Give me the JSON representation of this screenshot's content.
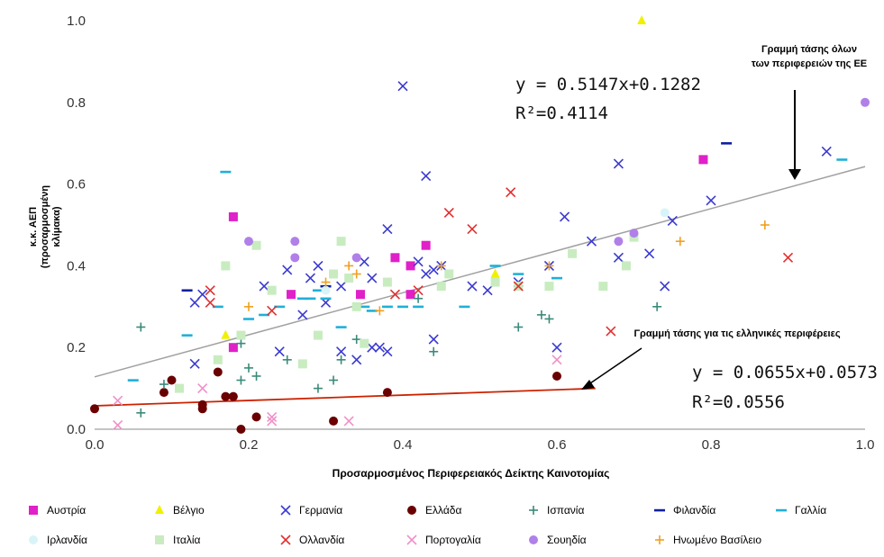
{
  "chart_data": {
    "type": "scatter",
    "title": "",
    "xlabel": "Προσαρμοσμένος Περιφερειακός Δείκτης Καινοτομίας",
    "ylabel_lines": [
      "κ.κ. ΑΕΠ",
      "(προσαρμοσμένη",
      "κλίμακα)"
    ],
    "xlim": [
      0.0,
      1.0
    ],
    "ylim": [
      0.0,
      1.0
    ],
    "x_ticks": [
      "0.0",
      "0.2",
      "0.4",
      "0.6",
      "0.8",
      "1.0"
    ],
    "y_ticks": [
      "0.0",
      "0.2",
      "0.4",
      "0.6",
      "0.8",
      "1.0"
    ],
    "grid": false,
    "legend_position": "bottom",
    "trendlines": [
      {
        "id": "eu",
        "color": "#a0a0a0",
        "slope": 0.5147,
        "intercept": 0.1282,
        "x_range": [
          0.0,
          1.0
        ],
        "equation": "y = 0.5147x+0.1282",
        "r2": "R²=0.4114",
        "label_lines": [
          "Γραμμή τάσης όλων",
          "των περιφερειών της ΕΕ"
        ]
      },
      {
        "id": "greece",
        "color": "#cc2200",
        "slope": 0.0655,
        "intercept": 0.0573,
        "x_range": [
          0.0,
          0.65
        ],
        "equation": "y = 0.0655x+0.0573",
        "r2": "R²=0.0556",
        "label_lines": [
          "Γραμμή τάσης για τις ελληνικές περιφέρειες"
        ]
      }
    ],
    "series": [
      {
        "name": "Αυστρία",
        "marker": "square",
        "color": "#e020c8",
        "points": [
          [
            0.18,
            0.52
          ],
          [
            0.18,
            0.2
          ],
          [
            0.255,
            0.33
          ],
          [
            0.345,
            0.33
          ],
          [
            0.39,
            0.42
          ],
          [
            0.41,
            0.4
          ],
          [
            0.43,
            0.45
          ],
          [
            0.41,
            0.33
          ],
          [
            0.79,
            0.66
          ]
        ]
      },
      {
        "name": "Βέλγιο",
        "marker": "triangle",
        "color": "#f0f000",
        "points": [
          [
            0.17,
            0.23
          ],
          [
            0.52,
            0.38
          ],
          [
            0.71,
            1.0
          ]
        ]
      },
      {
        "name": "Γερμανία",
        "marker": "x",
        "color": "#3a3ad0",
        "points": [
          [
            0.13,
            0.31
          ],
          [
            0.14,
            0.33
          ],
          [
            0.13,
            0.16
          ],
          [
            0.22,
            0.35
          ],
          [
            0.25,
            0.39
          ],
          [
            0.24,
            0.19
          ],
          [
            0.28,
            0.37
          ],
          [
            0.29,
            0.4
          ],
          [
            0.3,
            0.31
          ],
          [
            0.32,
            0.35
          ],
          [
            0.32,
            0.19
          ],
          [
            0.34,
            0.17
          ],
          [
            0.35,
            0.41
          ],
          [
            0.36,
            0.2
          ],
          [
            0.38,
            0.49
          ],
          [
            0.38,
            0.19
          ],
          [
            0.4,
            0.84
          ],
          [
            0.42,
            0.41
          ],
          [
            0.44,
            0.39
          ],
          [
            0.43,
            0.62
          ],
          [
            0.44,
            0.22
          ],
          [
            0.45,
            0.4
          ],
          [
            0.49,
            0.35
          ],
          [
            0.51,
            0.34
          ],
          [
            0.55,
            0.36
          ],
          [
            0.59,
            0.4
          ],
          [
            0.6,
            0.2
          ],
          [
            0.61,
            0.52
          ],
          [
            0.645,
            0.46
          ],
          [
            0.68,
            0.42
          ],
          [
            0.68,
            0.65
          ],
          [
            0.72,
            0.43
          ],
          [
            0.74,
            0.35
          ],
          [
            0.75,
            0.51
          ],
          [
            0.8,
            0.56
          ],
          [
            0.95,
            0.68
          ],
          [
            0.43,
            0.38
          ],
          [
            0.36,
            0.37
          ],
          [
            0.27,
            0.28
          ],
          [
            0.37,
            0.2
          ]
        ]
      },
      {
        "name": "Ελλάδα",
        "marker": "circle",
        "color": "#6a0000",
        "points": [
          [
            0.0,
            0.05
          ],
          [
            0.09,
            0.09
          ],
          [
            0.1,
            0.12
          ],
          [
            0.14,
            0.06
          ],
          [
            0.14,
            0.05
          ],
          [
            0.16,
            0.14
          ],
          [
            0.17,
            0.08
          ],
          [
            0.18,
            0.08
          ],
          [
            0.19,
            0.0
          ],
          [
            0.21,
            0.03
          ],
          [
            0.31,
            0.02
          ],
          [
            0.38,
            0.09
          ],
          [
            0.6,
            0.13
          ]
        ]
      },
      {
        "name": "Ισπανία",
        "marker": "plus",
        "color": "#3a8a7a",
        "points": [
          [
            0.06,
            0.25
          ],
          [
            0.06,
            0.04
          ],
          [
            0.09,
            0.11
          ],
          [
            0.19,
            0.12
          ],
          [
            0.2,
            0.15
          ],
          [
            0.21,
            0.13
          ],
          [
            0.25,
            0.17
          ],
          [
            0.29,
            0.1
          ],
          [
            0.31,
            0.12
          ],
          [
            0.32,
            0.17
          ],
          [
            0.34,
            0.22
          ],
          [
            0.44,
            0.19
          ],
          [
            0.55,
            0.25
          ],
          [
            0.58,
            0.28
          ],
          [
            0.59,
            0.27
          ],
          [
            0.73,
            0.3
          ],
          [
            0.42,
            0.32
          ],
          [
            0.19,
            0.21
          ]
        ]
      },
      {
        "name": "Φιλανδία",
        "marker": "dash",
        "color": "#1020a0",
        "points": [
          [
            0.12,
            0.34
          ],
          [
            0.3,
            0.35
          ],
          [
            0.82,
            0.7
          ]
        ]
      },
      {
        "name": "Γαλλία",
        "marker": "dash",
        "color": "#20b0d8",
        "points": [
          [
            0.05,
            0.12
          ],
          [
            0.12,
            0.23
          ],
          [
            0.16,
            0.3
          ],
          [
            0.17,
            0.63
          ],
          [
            0.2,
            0.27
          ],
          [
            0.22,
            0.28
          ],
          [
            0.24,
            0.3
          ],
          [
            0.27,
            0.32
          ],
          [
            0.28,
            0.32
          ],
          [
            0.3,
            0.32
          ],
          [
            0.32,
            0.25
          ],
          [
            0.35,
            0.3
          ],
          [
            0.36,
            0.29
          ],
          [
            0.38,
            0.3
          ],
          [
            0.4,
            0.3
          ],
          [
            0.42,
            0.3
          ],
          [
            0.48,
            0.3
          ],
          [
            0.52,
            0.4
          ],
          [
            0.55,
            0.38
          ],
          [
            0.6,
            0.37
          ],
          [
            0.97,
            0.66
          ],
          [
            0.29,
            0.34
          ]
        ]
      },
      {
        "name": "Ιρλανδία",
        "marker": "circle",
        "color": "#d8f4f8",
        "points": [
          [
            0.3,
            0.34
          ],
          [
            0.74,
            0.53
          ]
        ]
      },
      {
        "name": "Ιταλία",
        "marker": "square",
        "color": "#c8ecc0",
        "points": [
          [
            0.11,
            0.1
          ],
          [
            0.16,
            0.17
          ],
          [
            0.17,
            0.4
          ],
          [
            0.19,
            0.23
          ],
          [
            0.21,
            0.45
          ],
          [
            0.23,
            0.34
          ],
          [
            0.27,
            0.16
          ],
          [
            0.29,
            0.23
          ],
          [
            0.31,
            0.38
          ],
          [
            0.33,
            0.37
          ],
          [
            0.34,
            0.3
          ],
          [
            0.35,
            0.21
          ],
          [
            0.38,
            0.36
          ],
          [
            0.46,
            0.38
          ],
          [
            0.52,
            0.36
          ],
          [
            0.55,
            0.35
          ],
          [
            0.59,
            0.35
          ],
          [
            0.62,
            0.43
          ],
          [
            0.66,
            0.35
          ],
          [
            0.69,
            0.4
          ],
          [
            0.7,
            0.47
          ],
          [
            0.32,
            0.46
          ],
          [
            0.45,
            0.35
          ]
        ]
      },
      {
        "name": "Ολλανδία",
        "marker": "x",
        "color": "#e03030",
        "points": [
          [
            0.15,
            0.34
          ],
          [
            0.15,
            0.31
          ],
          [
            0.23,
            0.29
          ],
          [
            0.39,
            0.33
          ],
          [
            0.42,
            0.34
          ],
          [
            0.46,
            0.53
          ],
          [
            0.49,
            0.49
          ],
          [
            0.54,
            0.58
          ],
          [
            0.55,
            0.35
          ],
          [
            0.67,
            0.24
          ],
          [
            0.9,
            0.42
          ]
        ]
      },
      {
        "name": "Πορτογαλία",
        "marker": "x",
        "color": "#f090c8",
        "points": [
          [
            0.03,
            0.07
          ],
          [
            0.03,
            0.01
          ],
          [
            0.14,
            0.1
          ],
          [
            0.23,
            0.02
          ],
          [
            0.23,
            0.03
          ],
          [
            0.33,
            0.02
          ],
          [
            0.6,
            0.17
          ]
        ]
      },
      {
        "name": "Σουηδία",
        "marker": "circle",
        "color": "#b080e8",
        "points": [
          [
            0.2,
            0.46
          ],
          [
            0.26,
            0.46
          ],
          [
            0.26,
            0.42
          ],
          [
            0.34,
            0.42
          ],
          [
            0.68,
            0.46
          ],
          [
            0.7,
            0.48
          ],
          [
            1.0,
            0.8
          ]
        ]
      },
      {
        "name": "Ηνωμένο Βασίλειο",
        "marker": "plus",
        "color": "#f0a020",
        "points": [
          [
            0.3,
            0.36
          ],
          [
            0.33,
            0.4
          ],
          [
            0.37,
            0.29
          ],
          [
            0.45,
            0.4
          ],
          [
            0.59,
            0.4
          ],
          [
            0.76,
            0.46
          ],
          [
            0.87,
            0.5
          ],
          [
            0.2,
            0.3
          ],
          [
            0.34,
            0.38
          ]
        ]
      }
    ]
  }
}
